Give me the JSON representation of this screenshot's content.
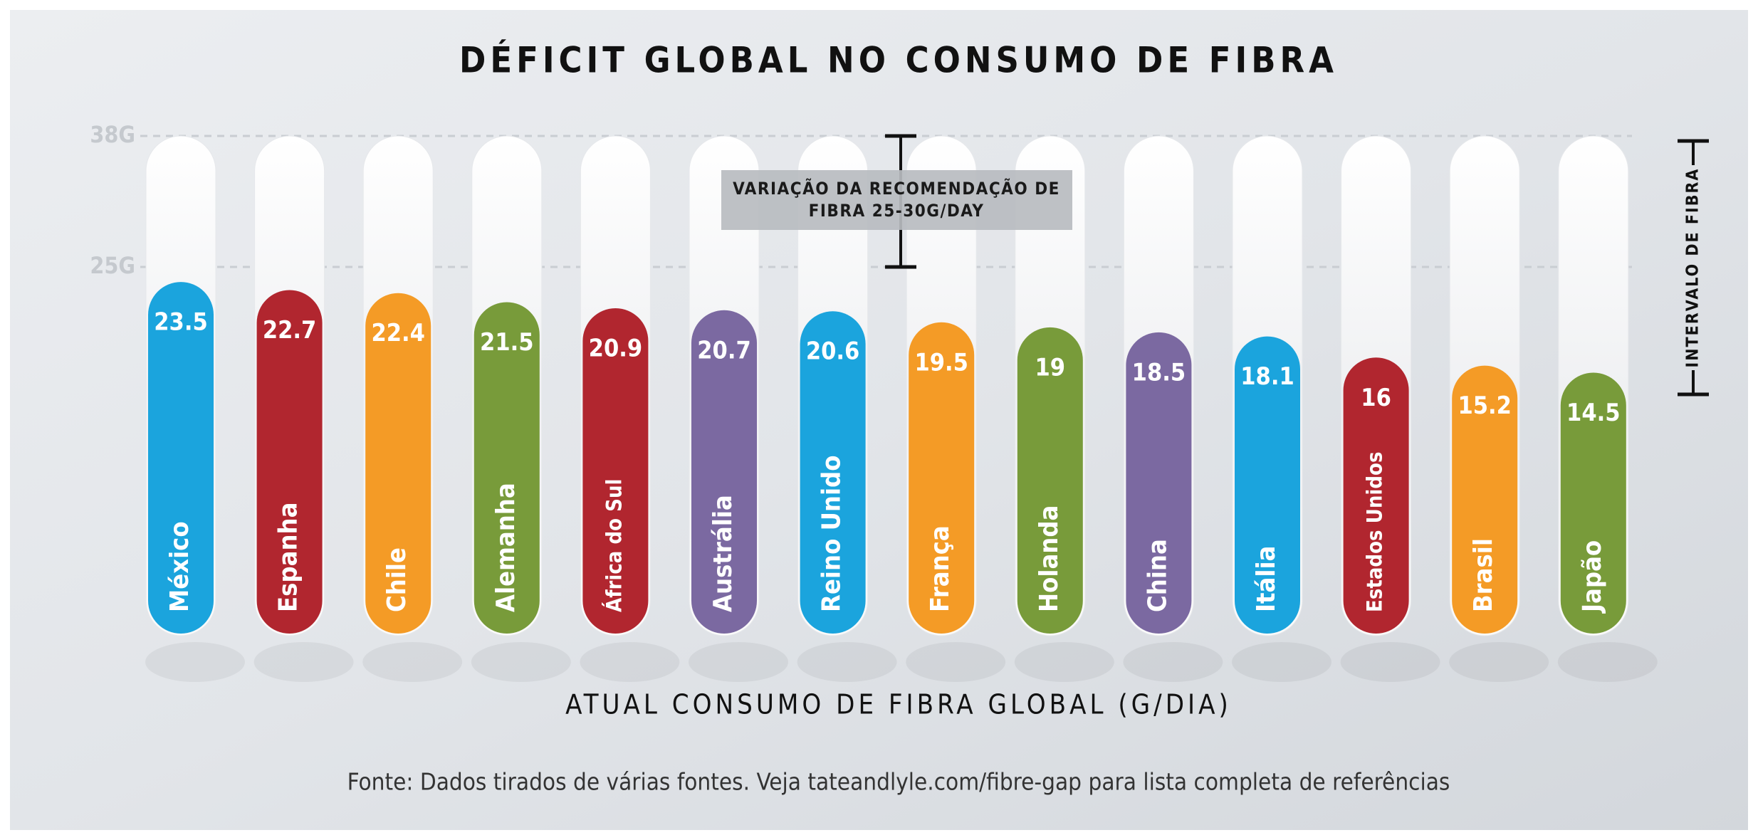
{
  "chart_data": {
    "type": "bar",
    "title": "DÉFICIT GLOBAL NO CONSUMO DE FIBRA",
    "categories": [
      "México",
      "Espanha",
      "Chile",
      "Alemanha",
      "África do Sul",
      "Austrália",
      "Reino Unido",
      "França",
      "Holanda",
      "China",
      "Itália",
      "Estados Unidos",
      "Brasil",
      "Japão"
    ],
    "values": [
      23.5,
      22.7,
      22.4,
      21.5,
      20.9,
      20.7,
      20.6,
      19.5,
      19,
      18.5,
      18.1,
      16,
      15.2,
      14.5
    ],
    "colors": [
      "#1ba4dd",
      "#b1262f",
      "#f49b26",
      "#789b3a",
      "#b1262f",
      "#7b69a1",
      "#1ba4dd",
      "#f49b26",
      "#789b3a",
      "#7b69a1",
      "#1ba4dd",
      "#b1262f",
      "#f49b26",
      "#789b3a"
    ],
    "ylim": [
      -11.4,
      38
    ],
    "yticks": [
      {
        "value": 38,
        "label": "38G"
      },
      {
        "value": 25,
        "label": "25G"
      }
    ],
    "grid": true,
    "annotation": [
      "VARIAÇÃO DA RECOMENDAÇÃO DE",
      "FIBRA 25-30G/DAY"
    ],
    "side_label": "INTERVALO DE FIBRA",
    "xlabel": "ATUAL CONSUMO DE FIBRA GLOBAL (G/DIA)",
    "source": "Fonte: Dados tirados de várias fontes. Veja tateandlyle.com/fibre-gap para lista completa de referências"
  }
}
